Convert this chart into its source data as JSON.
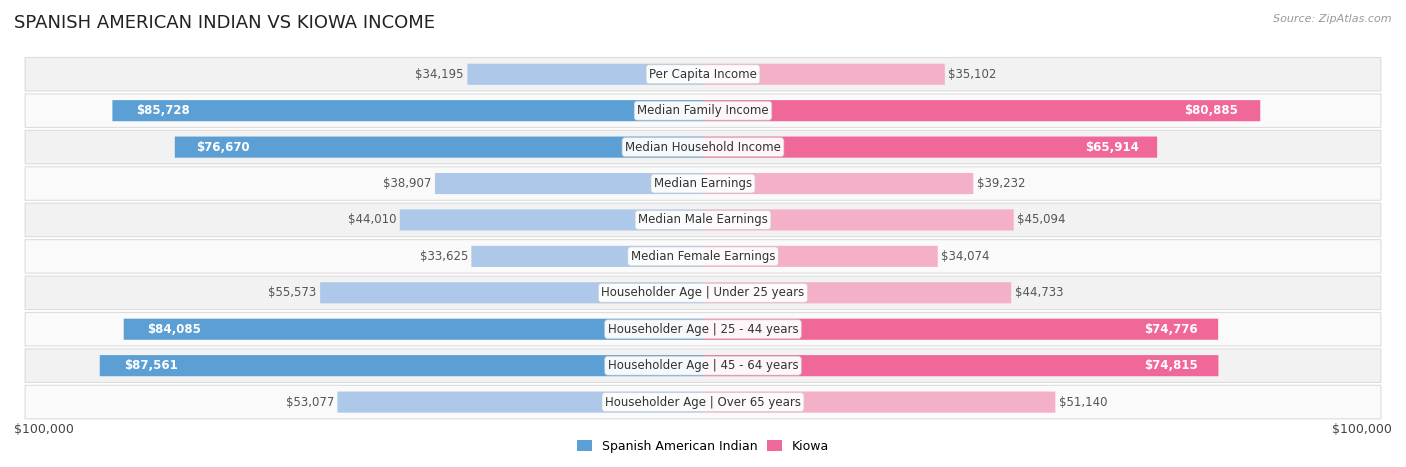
{
  "title": "SPANISH AMERICAN INDIAN VS KIOWA INCOME",
  "source": "Source: ZipAtlas.com",
  "categories": [
    "Per Capita Income",
    "Median Family Income",
    "Median Household Income",
    "Median Earnings",
    "Median Male Earnings",
    "Median Female Earnings",
    "Householder Age | Under 25 years",
    "Householder Age | 25 - 44 years",
    "Householder Age | 45 - 64 years",
    "Householder Age | Over 65 years"
  ],
  "left_values": [
    34195,
    85728,
    76670,
    38907,
    44010,
    33625,
    55573,
    84085,
    87561,
    53077
  ],
  "right_values": [
    35102,
    80885,
    65914,
    39232,
    45094,
    34074,
    44733,
    74776,
    74815,
    51140
  ],
  "left_labels": [
    "$34,195",
    "$85,728",
    "$76,670",
    "$38,907",
    "$44,010",
    "$33,625",
    "$55,573",
    "$84,085",
    "$87,561",
    "$53,077"
  ],
  "right_labels": [
    "$35,102",
    "$80,885",
    "$65,914",
    "$39,232",
    "$45,094",
    "$34,074",
    "$44,733",
    "$74,776",
    "$74,815",
    "$51,140"
  ],
  "max_value": 100000,
  "left_color_light": "#adc8e8",
  "left_color_dark": "#5b9fd4",
  "right_color_light": "#f4b0c8",
  "right_color_dark": "#f0679a",
  "label_color_outside": "#555555",
  "label_color_inside": "#ffffff",
  "dark_threshold": 60000,
  "row_colors": [
    "#f2f2f2",
    "#fafafa"
  ],
  "row_border_color": "#dddddd",
  "legend_left": "Spanish American Indian",
  "legend_right": "Kiowa",
  "title_fontsize": 13,
  "label_fontsize": 8.5,
  "category_fontsize": 8.5,
  "axis_label": "$100,000",
  "axis_fontsize": 9
}
